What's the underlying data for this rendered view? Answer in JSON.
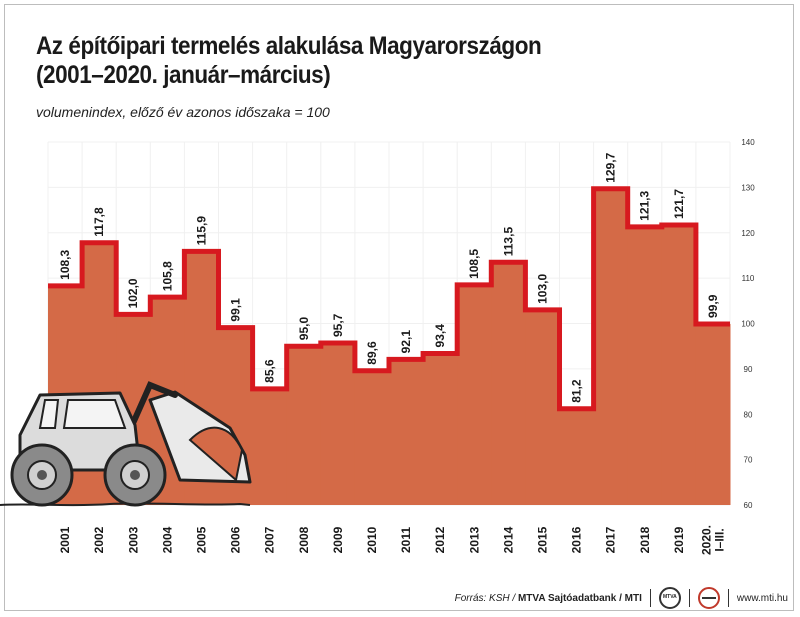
{
  "title_line1": "Az építőipari termelés alakulása Magyarországon",
  "title_line2": "(2001–2020. január–március)",
  "subtitle": "volumenindex, előző év azonos időszaka = 100",
  "footer": {
    "source": "Forrás: KSH / ",
    "credit": "MTVA Sajtóadatbank / MTI",
    "logo1": "mtva-logo-icon",
    "logo2": "mti-logo-icon",
    "url": "www.mti.hu"
  },
  "colors": {
    "fill": "#d46a47",
    "line": "#d7191f",
    "grid": "#f0f0f0"
  },
  "chart_data": {
    "type": "bar",
    "categories": [
      "2001",
      "2002",
      "2003",
      "2004",
      "2005",
      "2006",
      "2007",
      "2008",
      "2009",
      "2010",
      "2011",
      "2012",
      "2013",
      "2014",
      "2015",
      "2016",
      "2017",
      "2018",
      "2019",
      "2020. I–III."
    ],
    "values": [
      108.3,
      117.8,
      102.0,
      105.8,
      115.9,
      99.1,
      85.6,
      95.0,
      95.7,
      89.6,
      92.1,
      93.4,
      108.5,
      113.5,
      103.0,
      81.2,
      129.7,
      121.3,
      121.7,
      99.9
    ],
    "labels": [
      "108,3",
      "117,8",
      "102,0",
      "105,8",
      "115,9",
      "99,1",
      "85,6",
      "95,0",
      "95,7",
      "89,6",
      "92,1",
      "93,4",
      "108,5",
      "113,5",
      "103,0",
      "81,2",
      "129,7",
      "121,3",
      "121,7",
      "99,9"
    ],
    "ylim": [
      60,
      140
    ],
    "yticks": [
      60,
      70,
      80,
      90,
      100,
      110,
      120,
      130,
      140
    ],
    "grid": true
  }
}
